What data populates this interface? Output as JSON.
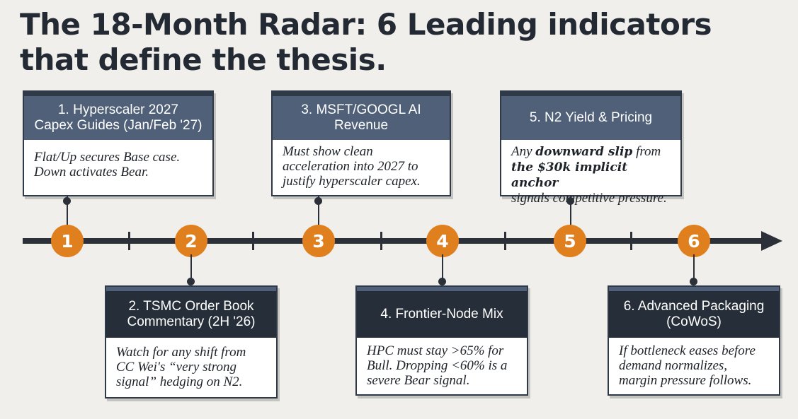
{
  "title": "The 18-Month Radar: 6 Leading indicators that define the thesis.",
  "indicators": [
    {
      "number": "1",
      "heading_lines": [
        "1. Hyperscaler 2027",
        "Capex Guides (Jan/Feb '27)"
      ],
      "body_lines": [
        "Flat/Up secures Base case.",
        "Down activates Bear."
      ]
    },
    {
      "number": "2",
      "heading_lines": [
        "2. TSMC Order Book",
        "Commentary (2H '26)"
      ],
      "body_lines": [
        "Watch for any shift from",
        "CC Wei's “very strong",
        "signal” hedging on N2."
      ]
    },
    {
      "number": "3",
      "heading_lines": [
        "3. MSFT/GOOGL AI",
        "Revenue"
      ],
      "body_lines": [
        "Must show clean",
        "acceleration into 2027 to",
        "justify hyperscaler capex."
      ]
    },
    {
      "number": "4",
      "heading_lines": [
        "4. Frontier-Node Mix"
      ],
      "body_lines": [
        "HPC must stay >65% for",
        "Bull. Dropping <60% is a",
        "severe Bear signal."
      ]
    },
    {
      "number": "5",
      "heading_lines": [
        "5. N2 Yield & Pricing"
      ],
      "body_line1_prefix": "Any ",
      "body_line1_bold": "downward slip",
      "body_line1_suffix": " from",
      "body_line2_bold": "the $30k implicit anchor",
      "body_line3": "signals competitive pressure."
    },
    {
      "number": "6",
      "heading_lines": [
        "6. Advanced Packaging",
        "(CoWoS)"
      ],
      "body_lines": [
        "If bottleneck eases before",
        "demand normalizes,",
        "margin pressure follows."
      ]
    }
  ],
  "colors": {
    "background": "#f0efeb",
    "node_orange": "#e07f1e",
    "top_header": "#4f6078",
    "bottom_header": "#262e39",
    "axis": "#2b3039"
  }
}
